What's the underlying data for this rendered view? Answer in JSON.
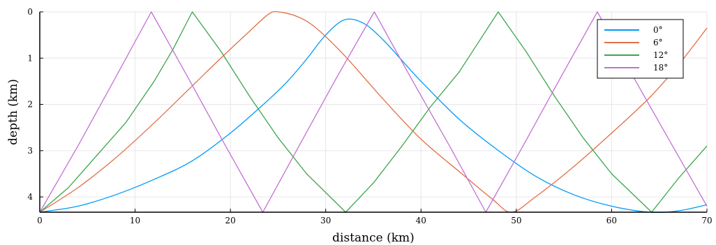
{
  "chart_data": {
    "type": "line",
    "title": "",
    "xlabel": "distance (km)",
    "ylabel": "depth (km)",
    "xlim": [
      0,
      70
    ],
    "ylim": [
      0,
      4.33
    ],
    "y_inverted": true,
    "grid": true,
    "legend_position": "top-right",
    "x_ticks": [
      "0",
      "10",
      "20",
      "30",
      "40",
      "50",
      "60",
      "70"
    ],
    "y_ticks": [
      "0",
      "1",
      "2",
      "3",
      "4"
    ],
    "series": [
      {
        "name": "0°",
        "color": "#009AFA",
        "points": [
          [
            0,
            4.33
          ],
          [
            4,
            4.2
          ],
          [
            8,
            3.95
          ],
          [
            12,
            3.62
          ],
          [
            16,
            3.22
          ],
          [
            20,
            2.62
          ],
          [
            24,
            1.9
          ],
          [
            26,
            1.5
          ],
          [
            28,
            1.02
          ],
          [
            30,
            0.5
          ],
          [
            32,
            0.17
          ],
          [
            34,
            0.25
          ],
          [
            36,
            0.6
          ],
          [
            38,
            1.05
          ],
          [
            40,
            1.5
          ],
          [
            44,
            2.32
          ],
          [
            48,
            2.98
          ],
          [
            52,
            3.55
          ],
          [
            56,
            3.95
          ],
          [
            60,
            4.2
          ],
          [
            64,
            4.33
          ],
          [
            67,
            4.3
          ],
          [
            70,
            4.17
          ]
        ]
      },
      {
        "name": "6°",
        "color": "#E26F46",
        "points": [
          [
            0,
            4.33
          ],
          [
            4,
            3.8
          ],
          [
            8,
            3.15
          ],
          [
            12,
            2.4
          ],
          [
            16,
            1.6
          ],
          [
            19,
            1.0
          ],
          [
            22,
            0.42
          ],
          [
            24,
            0.05
          ],
          [
            25,
            0
          ],
          [
            27,
            0.1
          ],
          [
            29,
            0.35
          ],
          [
            32,
            0.95
          ],
          [
            36,
            1.88
          ],
          [
            40,
            2.75
          ],
          [
            44,
            3.45
          ],
          [
            47.5,
            4.05
          ],
          [
            49.5,
            4.33
          ],
          [
            52,
            4.0
          ],
          [
            56,
            3.35
          ],
          [
            60,
            2.62
          ],
          [
            64,
            1.85
          ],
          [
            67,
            1.15
          ],
          [
            70,
            0.35
          ]
        ]
      },
      {
        "name": "12°",
        "color": "#3DA44D",
        "points": [
          [
            0,
            4.33
          ],
          [
            3,
            3.8
          ],
          [
            6,
            3.1
          ],
          [
            9,
            2.4
          ],
          [
            12,
            1.5
          ],
          [
            14,
            0.8
          ],
          [
            16,
            0
          ],
          [
            19,
            0.85
          ],
          [
            22,
            1.82
          ],
          [
            25,
            2.72
          ],
          [
            28,
            3.5
          ],
          [
            32.1,
            4.33
          ],
          [
            35,
            3.7
          ],
          [
            38,
            2.9
          ],
          [
            41,
            2.05
          ],
          [
            44,
            1.3
          ],
          [
            48.1,
            0
          ],
          [
            51,
            0.85
          ],
          [
            54,
            1.82
          ],
          [
            57,
            2.72
          ],
          [
            60,
            3.5
          ],
          [
            64.2,
            4.33
          ],
          [
            67,
            3.6
          ],
          [
            70,
            2.9
          ]
        ]
      },
      {
        "name": "18°",
        "color": "#C271D2",
        "points": [
          [
            0,
            4.33
          ],
          [
            4,
            2.9
          ],
          [
            8,
            1.4
          ],
          [
            11.7,
            0
          ],
          [
            15.5,
            1.4
          ],
          [
            19.5,
            2.9
          ],
          [
            23.4,
            4.33
          ],
          [
            27.2,
            2.9
          ],
          [
            31.2,
            1.4
          ],
          [
            35.1,
            0
          ],
          [
            39,
            1.45
          ],
          [
            43,
            2.9
          ],
          [
            46.8,
            4.33
          ],
          [
            50.7,
            2.9
          ],
          [
            54.7,
            1.4
          ],
          [
            58.5,
            0
          ],
          [
            62.4,
            1.45
          ],
          [
            66.4,
            2.9
          ],
          [
            70,
            4.2
          ]
        ]
      }
    ]
  }
}
